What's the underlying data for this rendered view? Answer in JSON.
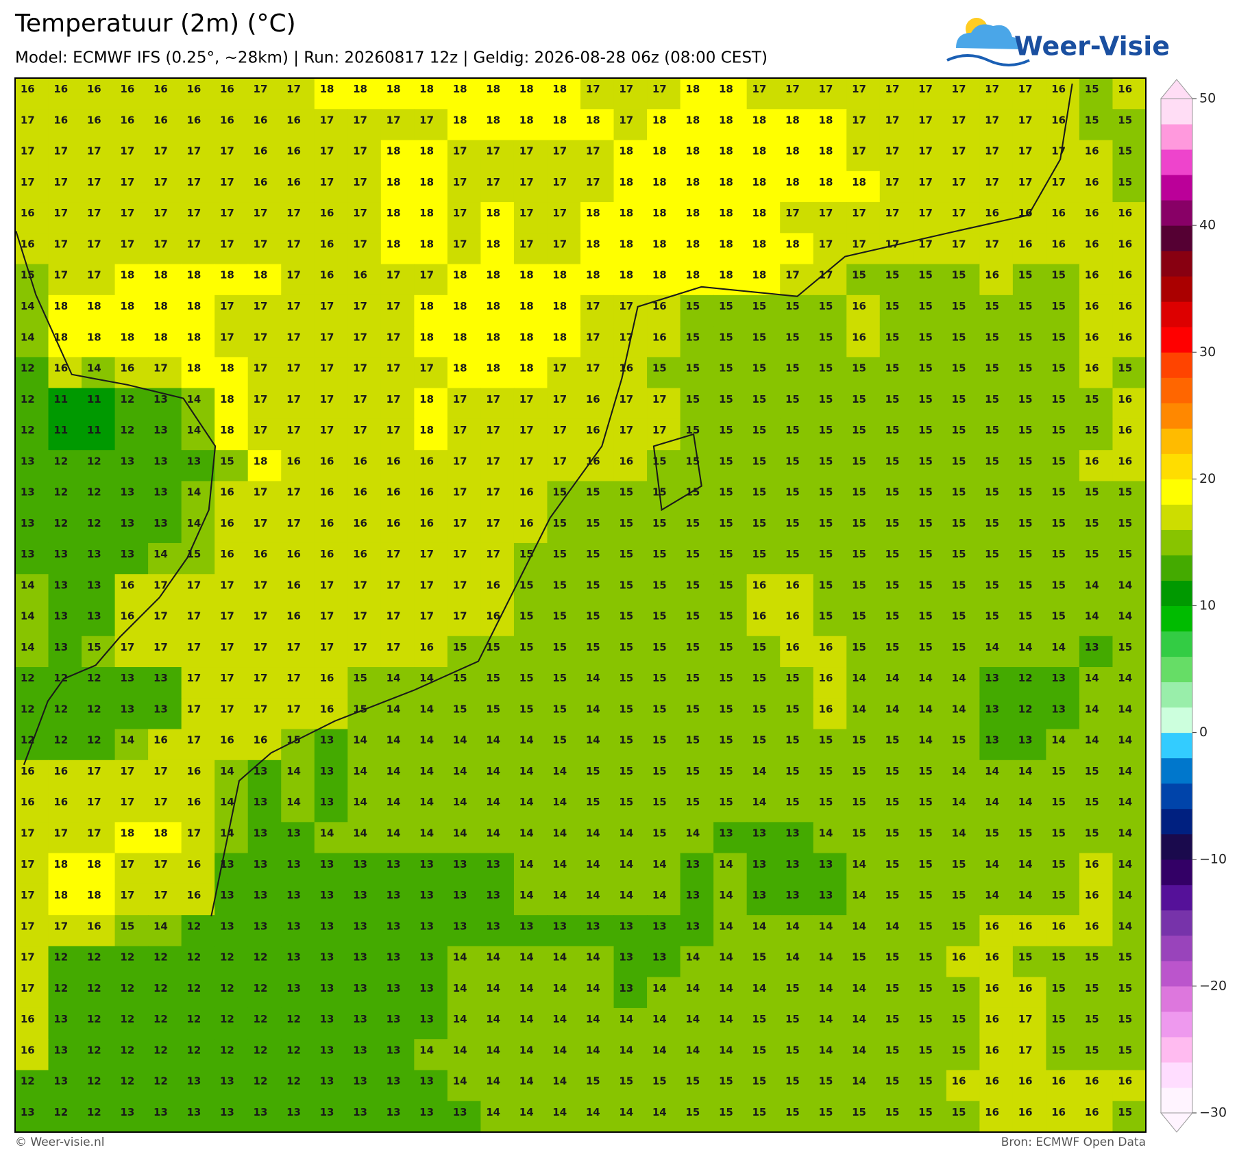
{
  "header": {
    "title": "Temperatuur (2m) (°C)",
    "subtitle": "Model: ECMWF IFS (0.25°, ~28km)  |  Run: 20260817 12z  |  Geldig: 2026-08-28 06z (08:00 CEST)"
  },
  "logo": {
    "text": "Weer-Visie"
  },
  "chart_data": {
    "type": "heatmap",
    "values": [
      [
        16,
        16,
        16,
        16,
        16,
        16,
        16,
        17,
        17,
        18,
        18,
        18,
        18,
        18,
        18,
        18,
        18,
        17,
        17,
        17,
        18,
        18,
        17,
        17,
        17,
        17,
        17,
        17,
        17,
        17,
        17,
        16,
        15,
        16
      ],
      [
        17,
        16,
        16,
        16,
        16,
        16,
        16,
        16,
        16,
        17,
        17,
        17,
        17,
        18,
        18,
        18,
        18,
        18,
        17,
        18,
        18,
        18,
        18,
        18,
        18,
        17,
        17,
        17,
        17,
        17,
        17,
        16,
        15,
        15
      ],
      [
        17,
        17,
        17,
        17,
        17,
        17,
        17,
        16,
        16,
        17,
        17,
        18,
        18,
        17,
        17,
        17,
        17,
        17,
        18,
        18,
        18,
        18,
        18,
        18,
        18,
        17,
        17,
        17,
        17,
        17,
        17,
        17,
        16,
        15
      ],
      [
        17,
        17,
        17,
        17,
        17,
        17,
        17,
        16,
        16,
        17,
        17,
        18,
        18,
        17,
        17,
        17,
        17,
        17,
        18,
        18,
        18,
        18,
        18,
        18,
        18,
        18,
        17,
        17,
        17,
        17,
        17,
        17,
        16,
        15
      ],
      [
        16,
        17,
        17,
        17,
        17,
        17,
        17,
        17,
        17,
        16,
        17,
        18,
        18,
        17,
        18,
        17,
        17,
        18,
        18,
        18,
        18,
        18,
        18,
        17,
        17,
        17,
        17,
        17,
        17,
        16,
        16,
        16,
        16,
        16
      ],
      [
        16,
        17,
        17,
        17,
        17,
        17,
        17,
        17,
        17,
        16,
        17,
        18,
        18,
        17,
        18,
        17,
        17,
        18,
        18,
        18,
        18,
        18,
        18,
        18,
        17,
        17,
        17,
        17,
        17,
        17,
        16,
        16,
        16,
        16
      ],
      [
        15,
        17,
        17,
        18,
        18,
        18,
        18,
        18,
        17,
        16,
        16,
        17,
        17,
        18,
        18,
        18,
        18,
        18,
        18,
        18,
        18,
        18,
        18,
        17,
        17,
        15,
        15,
        15,
        15,
        16,
        15,
        15,
        16,
        16
      ],
      [
        14,
        18,
        18,
        18,
        18,
        18,
        17,
        17,
        17,
        17,
        17,
        17,
        18,
        18,
        18,
        18,
        18,
        17,
        17,
        16,
        15,
        15,
        15,
        15,
        15,
        16,
        15,
        15,
        15,
        15,
        15,
        15,
        16,
        16
      ],
      [
        14,
        18,
        18,
        18,
        18,
        18,
        17,
        17,
        17,
        17,
        17,
        17,
        18,
        18,
        18,
        18,
        18,
        17,
        17,
        16,
        15,
        15,
        15,
        15,
        15,
        16,
        15,
        15,
        15,
        15,
        15,
        15,
        16,
        16
      ],
      [
        12,
        16,
        14,
        16,
        17,
        18,
        18,
        17,
        17,
        17,
        17,
        17,
        17,
        18,
        18,
        18,
        17,
        17,
        16,
        15,
        15,
        15,
        15,
        15,
        15,
        15,
        15,
        15,
        15,
        15,
        15,
        15,
        16,
        15
      ],
      [
        12,
        11,
        11,
        12,
        13,
        14,
        18,
        17,
        17,
        17,
        17,
        17,
        18,
        17,
        17,
        17,
        17,
        16,
        17,
        17,
        15,
        15,
        15,
        15,
        15,
        15,
        15,
        15,
        15,
        15,
        15,
        15,
        15,
        16
      ],
      [
        12,
        11,
        11,
        12,
        13,
        14,
        18,
        17,
        17,
        17,
        17,
        17,
        18,
        17,
        17,
        17,
        17,
        16,
        17,
        17,
        15,
        15,
        15,
        15,
        15,
        15,
        15,
        15,
        15,
        15,
        15,
        15,
        15,
        16
      ],
      [
        13,
        12,
        12,
        13,
        13,
        13,
        15,
        18,
        16,
        16,
        16,
        16,
        16,
        17,
        17,
        17,
        17,
        16,
        16,
        15,
        15,
        15,
        15,
        15,
        15,
        15,
        15,
        15,
        15,
        15,
        15,
        15,
        16,
        16
      ],
      [
        13,
        12,
        12,
        13,
        13,
        14,
        16,
        17,
        17,
        16,
        16,
        16,
        16,
        17,
        17,
        16,
        15,
        15,
        15,
        15,
        15,
        15,
        15,
        15,
        15,
        15,
        15,
        15,
        15,
        15,
        15,
        15,
        15,
        15
      ],
      [
        13,
        12,
        12,
        13,
        13,
        14,
        16,
        17,
        17,
        16,
        16,
        16,
        16,
        17,
        17,
        16,
        15,
        15,
        15,
        15,
        15,
        15,
        15,
        15,
        15,
        15,
        15,
        15,
        15,
        15,
        15,
        15,
        15,
        15
      ],
      [
        13,
        13,
        13,
        13,
        14,
        15,
        16,
        16,
        16,
        16,
        16,
        17,
        17,
        17,
        17,
        15,
        15,
        15,
        15,
        15,
        15,
        15,
        15,
        15,
        15,
        15,
        15,
        15,
        15,
        15,
        15,
        15,
        15,
        15
      ],
      [
        14,
        13,
        13,
        16,
        17,
        17,
        17,
        17,
        16,
        17,
        17,
        17,
        17,
        17,
        16,
        15,
        15,
        15,
        15,
        15,
        15,
        15,
        16,
        16,
        15,
        15,
        15,
        15,
        15,
        15,
        15,
        15,
        14,
        14
      ],
      [
        14,
        13,
        13,
        16,
        17,
        17,
        17,
        17,
        16,
        17,
        17,
        17,
        17,
        17,
        16,
        15,
        15,
        15,
        15,
        15,
        15,
        15,
        16,
        16,
        15,
        15,
        15,
        15,
        15,
        15,
        15,
        15,
        14,
        14
      ],
      [
        14,
        13,
        15,
        17,
        17,
        17,
        17,
        17,
        17,
        17,
        17,
        17,
        16,
        15,
        15,
        15,
        15,
        15,
        15,
        15,
        15,
        15,
        15,
        16,
        16,
        15,
        15,
        15,
        15,
        14,
        14,
        14,
        13,
        15
      ],
      [
        12,
        12,
        12,
        13,
        13,
        17,
        17,
        17,
        17,
        16,
        15,
        14,
        14,
        15,
        15,
        15,
        15,
        14,
        15,
        15,
        15,
        15,
        15,
        15,
        16,
        14,
        14,
        14,
        14,
        13,
        12,
        13,
        14,
        14
      ],
      [
        12,
        12,
        12,
        13,
        13,
        17,
        17,
        17,
        17,
        16,
        15,
        14,
        14,
        15,
        15,
        15,
        15,
        14,
        15,
        15,
        15,
        15,
        15,
        15,
        16,
        14,
        14,
        14,
        14,
        13,
        12,
        13,
        14,
        14
      ],
      [
        12,
        12,
        12,
        14,
        16,
        17,
        16,
        16,
        15,
        13,
        14,
        14,
        14,
        14,
        14,
        14,
        15,
        14,
        15,
        15,
        15,
        15,
        15,
        15,
        15,
        15,
        15,
        14,
        15,
        13,
        13,
        14,
        14,
        14
      ],
      [
        16,
        16,
        17,
        17,
        17,
        16,
        14,
        13,
        14,
        13,
        14,
        14,
        14,
        14,
        14,
        14,
        14,
        15,
        15,
        15,
        15,
        15,
        14,
        15,
        15,
        15,
        15,
        15,
        14,
        14,
        14,
        15,
        15,
        14
      ],
      [
        16,
        16,
        17,
        17,
        17,
        16,
        14,
        13,
        14,
        13,
        14,
        14,
        14,
        14,
        14,
        14,
        14,
        15,
        15,
        15,
        15,
        15,
        14,
        15,
        15,
        15,
        15,
        15,
        14,
        14,
        14,
        15,
        15,
        14
      ],
      [
        17,
        17,
        17,
        18,
        18,
        17,
        14,
        13,
        13,
        14,
        14,
        14,
        14,
        14,
        14,
        14,
        14,
        14,
        14,
        15,
        14,
        13,
        13,
        13,
        14,
        15,
        15,
        15,
        14,
        15,
        15,
        15,
        15,
        14
      ],
      [
        17,
        18,
        18,
        17,
        17,
        16,
        13,
        13,
        13,
        13,
        13,
        13,
        13,
        13,
        13,
        14,
        14,
        14,
        14,
        14,
        13,
        14,
        13,
        13,
        13,
        14,
        15,
        15,
        15,
        14,
        14,
        15,
        16,
        14
      ],
      [
        17,
        18,
        18,
        17,
        17,
        16,
        13,
        13,
        13,
        13,
        13,
        13,
        13,
        13,
        13,
        14,
        14,
        14,
        14,
        14,
        13,
        14,
        13,
        13,
        13,
        14,
        15,
        15,
        15,
        14,
        14,
        15,
        16,
        14
      ],
      [
        17,
        17,
        16,
        15,
        14,
        12,
        13,
        13,
        13,
        13,
        13,
        13,
        13,
        13,
        13,
        13,
        13,
        13,
        13,
        13,
        13,
        14,
        14,
        14,
        14,
        14,
        14,
        15,
        15,
        16,
        16,
        16,
        16,
        14
      ],
      [
        17,
        12,
        12,
        12,
        12,
        12,
        12,
        12,
        13,
        13,
        13,
        13,
        13,
        14,
        14,
        14,
        14,
        14,
        13,
        13,
        14,
        14,
        15,
        14,
        14,
        15,
        15,
        15,
        16,
        16,
        15,
        15,
        15,
        15
      ],
      [
        17,
        12,
        12,
        12,
        12,
        12,
        12,
        12,
        13,
        13,
        13,
        13,
        13,
        14,
        14,
        14,
        14,
        14,
        13,
        14,
        14,
        14,
        14,
        15,
        14,
        14,
        15,
        15,
        15,
        16,
        16,
        15,
        15,
        15
      ],
      [
        16,
        13,
        12,
        12,
        12,
        12,
        12,
        12,
        12,
        13,
        13,
        13,
        13,
        14,
        14,
        14,
        14,
        14,
        14,
        14,
        14,
        14,
        15,
        15,
        14,
        14,
        15,
        15,
        15,
        16,
        17,
        15,
        15,
        15
      ],
      [
        16,
        13,
        12,
        12,
        12,
        12,
        12,
        12,
        12,
        13,
        13,
        13,
        14,
        14,
        14,
        14,
        14,
        14,
        14,
        14,
        14,
        14,
        15,
        15,
        14,
        14,
        15,
        15,
        15,
        16,
        17,
        15,
        15,
        15
      ],
      [
        12,
        13,
        12,
        12,
        12,
        13,
        13,
        12,
        12,
        13,
        13,
        13,
        13,
        14,
        14,
        14,
        14,
        15,
        15,
        15,
        15,
        15,
        15,
        15,
        15,
        14,
        15,
        15,
        16,
        16,
        16,
        16,
        16,
        16
      ],
      [
        13,
        12,
        12,
        13,
        13,
        13,
        13,
        13,
        13,
        13,
        13,
        13,
        13,
        13,
        14,
        14,
        14,
        14,
        14,
        14,
        15,
        15,
        15,
        15,
        15,
        15,
        15,
        15,
        15,
        16,
        16,
        16,
        16,
        15
      ]
    ],
    "colorbar": {
      "lim": [
        -30,
        50
      ],
      "ticks": [
        {
          "value": -30,
          "label": "−30"
        },
        {
          "value": -20,
          "label": "−20"
        },
        {
          "value": -10,
          "label": "−10"
        },
        0,
        10,
        20,
        30,
        40,
        50
      ],
      "colors": [
        "#fff4ff",
        "#ffddff",
        "#ffbbf0",
        "#ee99ee",
        "#dd77dd",
        "#bb55cc",
        "#9944bb",
        "#7733aa",
        "#551199",
        "#330066",
        "#1a0a4d",
        "#002080",
        "#0044aa",
        "#0077cc",
        "#33ccff",
        "#ccffdd",
        "#99eeaa",
        "#66dd66",
        "#33cc44",
        "#00bb00",
        "#009900",
        "#44aa00",
        "#88c400",
        "#cddd00",
        "#ffff00",
        "#ffdd00",
        "#ffbb00",
        "#ff8800",
        "#ff6600",
        "#ff4400",
        "#ff0000",
        "#dd0000",
        "#aa0000",
        "#880011",
        "#550033",
        "#880066",
        "#bb0099",
        "#ee44cc",
        "#ff99dd",
        "#ffddf5"
      ]
    }
  },
  "footer": {
    "left": "© Weer-visie.nl",
    "right": "Bron: ECMWF Open Data"
  }
}
